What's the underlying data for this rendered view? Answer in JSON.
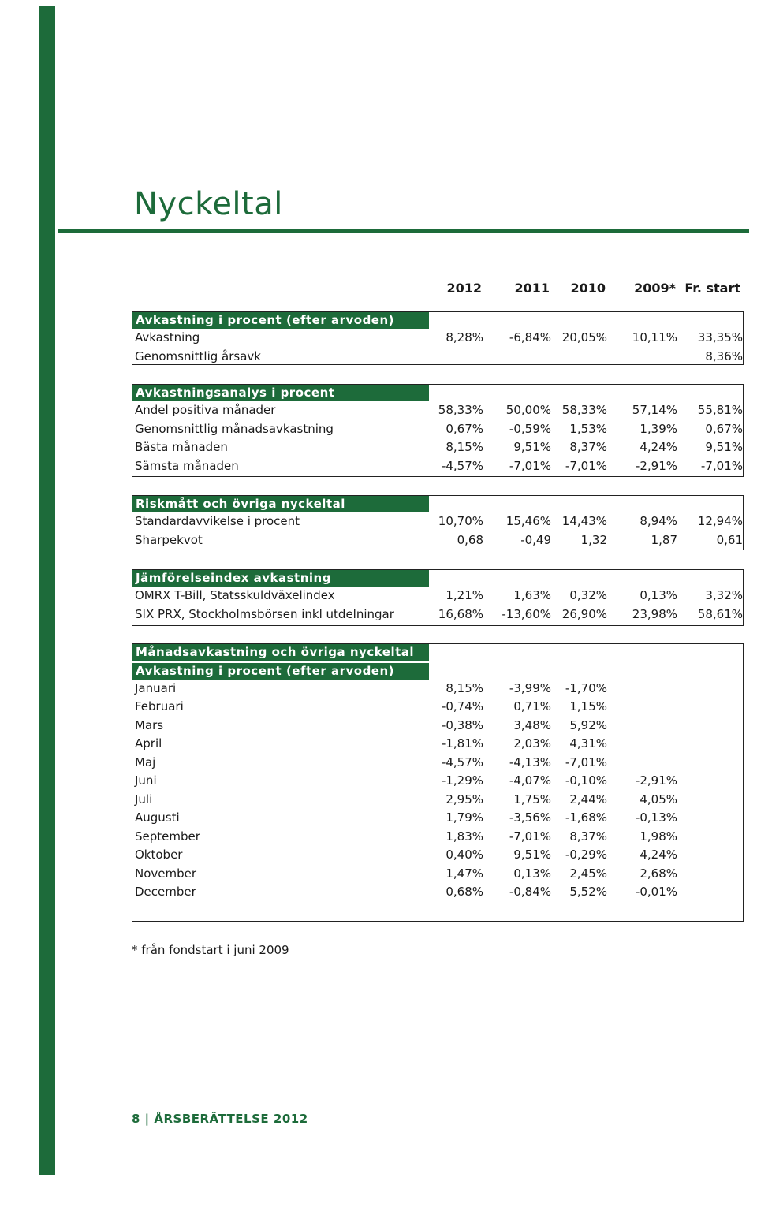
{
  "title": "Nyckeltal",
  "colors": {
    "accent": "#1d6b3a"
  },
  "years": [
    "2012",
    "2011",
    "2010",
    "2009*",
    "Fr. start"
  ],
  "sections": [
    {
      "headings": [
        "Avkastning i procent (efter arvoden)"
      ],
      "rows": [
        {
          "label": "Avkastning",
          "values": [
            "8,28%",
            "-6,84%",
            "20,05%",
            "10,11%",
            "33,35%"
          ]
        },
        {
          "label": "Genomsnittlig årsavk",
          "values": [
            "",
            "",
            "",
            "",
            "8,36%"
          ]
        }
      ]
    },
    {
      "headings": [
        "Avkastningsanalys i procent"
      ],
      "rows": [
        {
          "label": "Andel positiva månader",
          "values": [
            "58,33%",
            "50,00%",
            "58,33%",
            "57,14%",
            "55,81%"
          ]
        },
        {
          "label": "Genomsnittlig månadsavkastning",
          "values": [
            "0,67%",
            "-0,59%",
            "1,53%",
            "1,39%",
            "0,67%"
          ]
        },
        {
          "label": "Bästa månaden",
          "values": [
            "8,15%",
            "9,51%",
            "8,37%",
            "4,24%",
            "9,51%"
          ]
        },
        {
          "label": "Sämsta månaden",
          "values": [
            "-4,57%",
            "-7,01%",
            "-7,01%",
            "-2,91%",
            "-7,01%"
          ]
        }
      ]
    },
    {
      "headings": [
        "Riskmått och övriga nyckeltal"
      ],
      "rows": [
        {
          "label": "Standardavvikelse i procent",
          "values": [
            "10,70%",
            "15,46%",
            "14,43%",
            "8,94%",
            "12,94%"
          ]
        },
        {
          "label": "Sharpekvot",
          "values": [
            "0,68",
            "-0,49",
            "1,32",
            "1,87",
            "0,61"
          ]
        }
      ]
    },
    {
      "headings": [
        "Jämförelseindex avkastning"
      ],
      "rows": [
        {
          "label": "OMRX T-Bill, Statsskuldväxelindex",
          "values": [
            "1,21%",
            "1,63%",
            "0,32%",
            "0,13%",
            "3,32%"
          ]
        },
        {
          "label": "SIX PRX, Stockholmsbörsen inkl utdelningar",
          "values": [
            "16,68%",
            "-13,60%",
            "26,90%",
            "23,98%",
            "58,61%"
          ]
        }
      ]
    },
    {
      "headings": [
        "Månadsavkastning och övriga nyckeltal",
        "Avkastning i procent (efter arvoden)"
      ],
      "rows": [
        {
          "label": "Januari",
          "values": [
            "8,15%",
            "-3,99%",
            "-1,70%",
            "",
            ""
          ]
        },
        {
          "label": "Februari",
          "values": [
            "-0,74%",
            "0,71%",
            "1,15%",
            "",
            ""
          ]
        },
        {
          "label": "Mars",
          "values": [
            "-0,38%",
            "3,48%",
            "5,92%",
            "",
            ""
          ]
        },
        {
          "label": "April",
          "values": [
            "-1,81%",
            "2,03%",
            "4,31%",
            "",
            ""
          ]
        },
        {
          "label": "Maj",
          "values": [
            "-4,57%",
            "-4,13%",
            "-7,01%",
            "",
            ""
          ]
        },
        {
          "label": "Juni",
          "values": [
            "-1,29%",
            "-4,07%",
            "-0,10%",
            "-2,91%",
            ""
          ]
        },
        {
          "label": "Juli",
          "values": [
            "2,95%",
            "1,75%",
            "2,44%",
            "4,05%",
            ""
          ]
        },
        {
          "label": "Augusti",
          "values": [
            "1,79%",
            "-3,56%",
            "-1,68%",
            "-0,13%",
            ""
          ]
        },
        {
          "label": "September",
          "values": [
            "1,83%",
            "-7,01%",
            "8,37%",
            "1,98%",
            ""
          ]
        },
        {
          "label": "Oktober",
          "values": [
            "0,40%",
            "9,51%",
            "-0,29%",
            "4,24%",
            ""
          ]
        },
        {
          "label": "November",
          "values": [
            "1,47%",
            "0,13%",
            "2,45%",
            "2,68%",
            ""
          ]
        },
        {
          "label": "December",
          "values": [
            "0,68%",
            "-0,84%",
            "5,52%",
            "-0,01%",
            ""
          ]
        }
      ]
    }
  ],
  "footnote": "* från fondstart i juni 2009",
  "footer": "8 | ÅRSBERÄTTELSE 2012"
}
